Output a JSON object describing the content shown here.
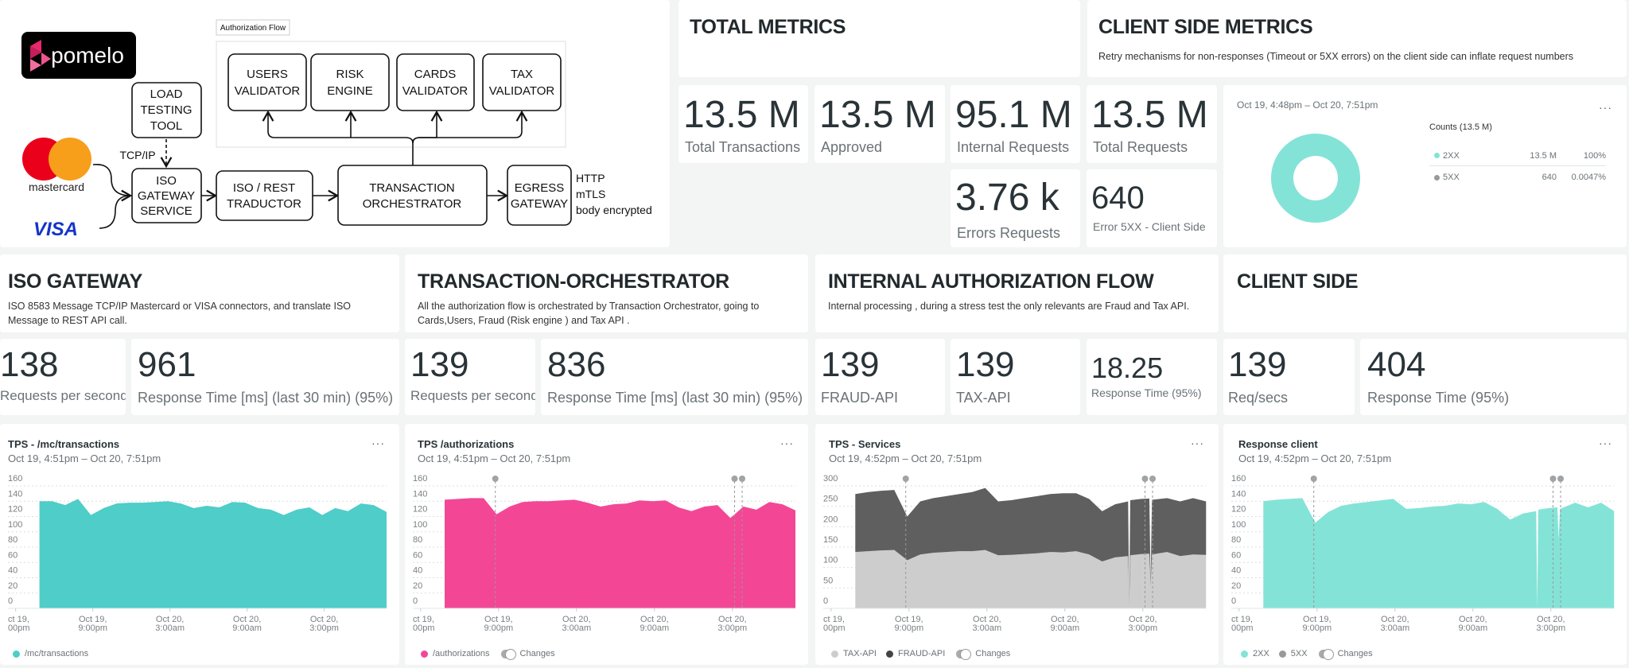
{
  "diagram": {
    "logo_text": "pomelo",
    "flow_label": "Authorization Flow",
    "validators": [
      [
        "USERS",
        "VALIDATOR"
      ],
      [
        "RISK",
        "ENGINE"
      ],
      [
        "CARDS",
        "VALIDATOR"
      ],
      [
        "TAX",
        "VALIDATOR"
      ]
    ],
    "load_tool": [
      "LOAD",
      "TESTING",
      "TOOL"
    ],
    "protocol": "TCP/IP",
    "iso_gateway": [
      "ISO",
      "GATEWAY",
      "SERVICE"
    ],
    "traductor": [
      "ISO / REST",
      "TRADUCTOR"
    ],
    "orchestrator": [
      "TRANSACTION",
      "ORCHESTRATOR"
    ],
    "egress": [
      "EGRESS",
      "GATEWAY"
    ],
    "egress_notes": [
      "HTTP",
      "mTLS",
      "body encrypted"
    ],
    "mastercard_label": "mastercard",
    "visa_label": "VISA"
  },
  "total_metrics": {
    "title": "TOTAL METRICS",
    "stats": [
      {
        "value": "13.5 M",
        "label": "Total Transactions"
      },
      {
        "value": "13.5 M",
        "label": "Approved"
      },
      {
        "value": "95.1 M",
        "label": "Internal Requests"
      },
      {
        "value": "13.5 M",
        "label": "Total Requests"
      },
      {
        "value": "3.76 k",
        "label": "Errors Requests"
      },
      {
        "value": "640",
        "label": "Error 5XX - Client Side"
      }
    ]
  },
  "client_side_metrics": {
    "title": "CLIENT SIDE METRICS",
    "description": "Retry mechanisms for non-responses (Timeout or 5XX errors) on the client side can inflate request numbers",
    "donut": {
      "date_range": "Oct 19, 4:48pm – Oct 20, 7:51pm",
      "legend_title": "Counts (13.5 M)",
      "rows": [
        {
          "name": "2XX",
          "count": "13.5 M",
          "pct": "100%",
          "fraction": 0.999953,
          "color": "#84e3d7"
        },
        {
          "name": "5XX",
          "count": "640",
          "pct": "0.0047%",
          "fraction": 4.7e-05,
          "color": "#999999"
        }
      ]
    }
  },
  "sections": [
    {
      "title": "ISO GATEWAY",
      "description": "ISO 8583 Message TCP/IP Mastercard or VISA connectors, and translate ISO Message to REST API call.",
      "stats": [
        {
          "value": "138",
          "label": "Requests per second"
        },
        {
          "value": "961",
          "label": "Response Time [ms] (last 30 min) (95%)"
        }
      ]
    },
    {
      "title": "TRANSACTION-ORCHESTRATOR",
      "description": "All the authorization flow is orchestrated by Transaction Orchestrator, going to Cards,Users, Fraud (Risk engine ) and Tax API .",
      "stats": [
        {
          "value": "139",
          "label": "Requests per second"
        },
        {
          "value": "836",
          "label": "Response Time [ms] (last 30 min) (95%)"
        }
      ]
    },
    {
      "title": "INTERNAL AUTHORIZATION FLOW",
      "description": "Internal processing , during a stress test the only relevants are Fraud and Tax API.",
      "stats": [
        {
          "value": "139",
          "label": "FRAUD-API"
        },
        {
          "value": "139",
          "label": "TAX-API"
        },
        {
          "value": "18.25",
          "label": "Response Time (95%)"
        }
      ]
    },
    {
      "title": "CLIENT SIDE",
      "description": "",
      "stats": [
        {
          "value": "139",
          "label": "Req/secs"
        },
        {
          "value": "404",
          "label": "Response Time (95%)"
        }
      ]
    }
  ],
  "changes_label": "Changes",
  "chart_data": [
    {
      "type": "area",
      "title": "TPS - /mc/transactions",
      "subtitle": "Oct 19, 4:51pm – Oct 20, 7:51pm",
      "ylim": [
        0,
        160
      ],
      "yticks": [
        "0",
        "20",
        "40",
        "60",
        "80",
        "100",
        "120",
        "140",
        "160"
      ],
      "grid": true,
      "legend": "bottom-left",
      "xlim": [
        "Oct 19 14:24",
        "Oct 20 19:51"
      ],
      "xticks": [
        {
          "at": "Oct 19 15:00",
          "lines": [
            "ct 19,",
            "00pm"
          ]
        },
        {
          "at": "Oct 19 21:00",
          "lines": [
            "Oct 19,",
            "9:00pm"
          ]
        },
        {
          "at": "Oct 20 03:00",
          "lines": [
            "Oct 20,",
            "3:00am"
          ]
        },
        {
          "at": "Oct 20 09:00",
          "lines": [
            "Oct 20,",
            "9:00am"
          ]
        },
        {
          "at": "Oct 20 15:00",
          "lines": [
            "Oct 20,",
            "3:00pm"
          ]
        }
      ],
      "x": [
        "Oct 19 16:51",
        "Oct 19 17:51",
        "Oct 19 18:51",
        "Oct 19 19:51",
        "Oct 19 20:51",
        "Oct 19 21:51",
        "Oct 19 22:51",
        "Oct 19 23:51",
        "Oct 20 00:51",
        "Oct 20 01:51",
        "Oct 20 02:51",
        "Oct 20 03:51",
        "Oct 20 04:51",
        "Oct 20 05:51",
        "Oct 20 06:51",
        "Oct 20 07:51",
        "Oct 20 08:51",
        "Oct 20 09:51",
        "Oct 20 10:51",
        "Oct 20 11:51",
        "Oct 20 12:51",
        "Oct 20 13:51",
        "Oct 20 14:51",
        "Oct 20 15:51",
        "Oct 20 16:51",
        "Oct 20 17:51",
        "Oct 20 18:51",
        "Oct 20 19:51"
      ],
      "series": [
        {
          "name": "/mc/transactions",
          "color": "#4ecdc9",
          "values": [
            140,
            140,
            135,
            143,
            122,
            131,
            137,
            138,
            138,
            139,
            140,
            137,
            131,
            134,
            132,
            139,
            138,
            131,
            129,
            122,
            129,
            132,
            122,
            131,
            127,
            137,
            135,
            126
          ]
        }
      ],
      "changes": []
    },
    {
      "type": "area",
      "title": "TPS /authorizations",
      "subtitle": "Oct 19, 4:51pm – Oct 20, 7:51pm",
      "ylim": [
        0,
        160
      ],
      "yticks": [
        "0",
        "20",
        "40",
        "60",
        "80",
        "100",
        "120",
        "140",
        "160"
      ],
      "grid": true,
      "legend": "bottom-left",
      "xlim": [
        "Oct 19 14:24",
        "Oct 20 19:51"
      ],
      "xticks": [
        {
          "at": "Oct 19 15:00",
          "lines": [
            "ct 19,",
            "00pm"
          ]
        },
        {
          "at": "Oct 19 21:00",
          "lines": [
            "Oct 19,",
            "9:00pm"
          ]
        },
        {
          "at": "Oct 20 03:00",
          "lines": [
            "Oct 20,",
            "3:00am"
          ]
        },
        {
          "at": "Oct 20 09:00",
          "lines": [
            "Oct 20,",
            "9:00am"
          ]
        },
        {
          "at": "Oct 20 15:00",
          "lines": [
            "Oct 20,",
            "3:00pm"
          ]
        }
      ],
      "x": [
        "Oct 19 16:51",
        "Oct 19 17:51",
        "Oct 19 18:51",
        "Oct 19 19:51",
        "Oct 19 20:51",
        "Oct 19 21:51",
        "Oct 19 22:51",
        "Oct 19 23:51",
        "Oct 20 00:51",
        "Oct 20 01:51",
        "Oct 20 02:51",
        "Oct 20 03:51",
        "Oct 20 04:51",
        "Oct 20 05:51",
        "Oct 20 06:51",
        "Oct 20 07:51",
        "Oct 20 08:51",
        "Oct 20 09:51",
        "Oct 20 10:51",
        "Oct 20 11:51",
        "Oct 20 12:51",
        "Oct 20 13:51",
        "Oct 20 14:51",
        "Oct 20 15:51",
        "Oct 20 16:51",
        "Oct 20 17:51",
        "Oct 20 18:51",
        "Oct 20 19:51"
      ],
      "series": [
        {
          "name": "/authorizations",
          "color": "#f34796",
          "values": [
            142,
            143,
            144,
            144,
            123,
            133,
            139,
            140,
            140,
            141,
            142,
            138,
            133,
            136,
            137,
            141,
            140,
            141,
            132,
            127,
            133,
            135,
            118,
            133,
            129,
            139,
            136,
            128
          ]
        }
      ],
      "changes": [
        "Oct 19 20:45",
        "Oct 20 15:10",
        "Oct 20 15:45"
      ]
    },
    {
      "type": "area",
      "stacked": true,
      "title": "TPS - Services",
      "subtitle": "Oct 19, 4:52pm – Oct 20, 7:51pm",
      "ylim": [
        0,
        300
      ],
      "yticks": [
        "0",
        "50",
        "100",
        "150",
        "200",
        "250",
        "300"
      ],
      "grid": true,
      "legend": "bottom-left",
      "xlim": [
        "Oct 19 14:24",
        "Oct 20 19:51"
      ],
      "xticks": [
        {
          "at": "Oct 19 15:00",
          "lines": [
            "ct 19,",
            "00pm"
          ]
        },
        {
          "at": "Oct 19 21:00",
          "lines": [
            "Oct 19,",
            "9:00pm"
          ]
        },
        {
          "at": "Oct 20 03:00",
          "lines": [
            "Oct 20,",
            "3:00am"
          ]
        },
        {
          "at": "Oct 20 09:00",
          "lines": [
            "Oct 20,",
            "9:00am"
          ]
        },
        {
          "at": "Oct 20 15:00",
          "lines": [
            "Oct 20,",
            "3:00pm"
          ]
        }
      ],
      "x": [
        "Oct 19 16:52",
        "Oct 19 17:52",
        "Oct 19 18:52",
        "Oct 19 19:52",
        "Oct 19 20:52",
        "Oct 19 21:52",
        "Oct 19 22:52",
        "Oct 19 23:52",
        "Oct 20 00:52",
        "Oct 20 01:52",
        "Oct 20 02:52",
        "Oct 20 03:52",
        "Oct 20 04:52",
        "Oct 20 05:52",
        "Oct 20 06:52",
        "Oct 20 07:52",
        "Oct 20 08:52",
        "Oct 20 09:52",
        "Oct 20 10:52",
        "Oct 20 11:52",
        "Oct 20 12:52",
        "Oct 20 13:52",
        "Oct 20 13:57",
        "Oct 20 14:02",
        "Oct 20 14:52",
        "Oct 20 15:30",
        "Oct 20 15:36",
        "Oct 20 15:42",
        "Oct 20 16:52",
        "Oct 20 17:52",
        "Oct 20 18:52",
        "Oct 20 19:52"
      ],
      "series": [
        {
          "name": "TAX-API",
          "color": "#cdcdcd",
          "values": [
            138,
            140,
            142,
            143,
            118,
            132,
            136,
            138,
            140,
            140,
            143,
            130,
            131,
            133,
            135,
            138,
            137,
            140,
            132,
            115,
            125,
            128,
            0,
            130,
            133,
            134,
            55,
            132,
            138,
            128,
            132,
            131
          ]
        },
        {
          "name": "FRAUD-API",
          "color": "#5f5f5f",
          "values": [
            142,
            145,
            146,
            147,
            107,
            130,
            134,
            137,
            140,
            145,
            152,
            132,
            134,
            137,
            140,
            142,
            145,
            142,
            136,
            123,
            130,
            134,
            0,
            135,
            135,
            135,
            5,
            134,
            132,
            134,
            138,
            131
          ]
        }
      ],
      "changes": [
        "Oct 19 20:45",
        "Oct 20 15:10",
        "Oct 20 15:45"
      ]
    },
    {
      "type": "area",
      "title": "Response client",
      "subtitle": "Oct 19, 4:52pm – Oct 20, 7:51pm",
      "ylim": [
        0,
        160
      ],
      "yticks": [
        "0",
        "20",
        "40",
        "60",
        "80",
        "100",
        "120",
        "140",
        "160"
      ],
      "grid": true,
      "legend": "bottom-left",
      "xlim": [
        "Oct 19 14:24",
        "Oct 20 19:51"
      ],
      "xticks": [
        {
          "at": "Oct 19 15:00",
          "lines": [
            "ct 19,",
            "00pm"
          ]
        },
        {
          "at": "Oct 19 21:00",
          "lines": [
            "Oct 19,",
            "9:00pm"
          ]
        },
        {
          "at": "Oct 20 03:00",
          "lines": [
            "Oct 20,",
            "3:00am"
          ]
        },
        {
          "at": "Oct 20 09:00",
          "lines": [
            "Oct 20,",
            "9:00am"
          ]
        },
        {
          "at": "Oct 20 15:00",
          "lines": [
            "Oct 20,",
            "3:00pm"
          ]
        }
      ],
      "x": [
        "Oct 19 16:52",
        "Oct 19 17:52",
        "Oct 19 18:52",
        "Oct 19 19:52",
        "Oct 19 20:52",
        "Oct 19 21:52",
        "Oct 19 22:52",
        "Oct 19 23:52",
        "Oct 20 00:52",
        "Oct 20 01:52",
        "Oct 20 02:52",
        "Oct 20 03:52",
        "Oct 20 04:52",
        "Oct 20 05:52",
        "Oct 20 06:52",
        "Oct 20 07:52",
        "Oct 20 08:52",
        "Oct 20 09:52",
        "Oct 20 10:52",
        "Oct 20 11:52",
        "Oct 20 12:52",
        "Oct 20 13:52",
        "Oct 20 13:57",
        "Oct 20 14:02",
        "Oct 20 14:52",
        "Oct 20 15:30",
        "Oct 20 15:36",
        "Oct 20 15:42",
        "Oct 20 16:52",
        "Oct 20 17:52",
        "Oct 20 18:52",
        "Oct 20 19:52"
      ],
      "series": [
        {
          "name": "2XX",
          "color": "#84e3d7",
          "values": [
            140,
            142,
            143,
            144,
            112,
            126,
            134,
            137,
            139,
            141,
            143,
            130,
            131,
            133,
            134,
            137,
            136,
            139,
            130,
            116,
            124,
            127,
            0,
            129,
            131,
            132,
            90,
            130,
            138,
            132,
            138,
            127
          ]
        },
        {
          "name": "5XX",
          "color": "#999999",
          "values": [
            0,
            0,
            0,
            0,
            0,
            0,
            0,
            0,
            0,
            0,
            0,
            0,
            0,
            0,
            0,
            0,
            0,
            0,
            0,
            0,
            0,
            0,
            0,
            0,
            0,
            0,
            0,
            0,
            0,
            0,
            0,
            0
          ]
        }
      ],
      "changes": [
        "Oct 19 20:45",
        "Oct 20 15:10",
        "Oct 20 15:45"
      ]
    }
  ]
}
